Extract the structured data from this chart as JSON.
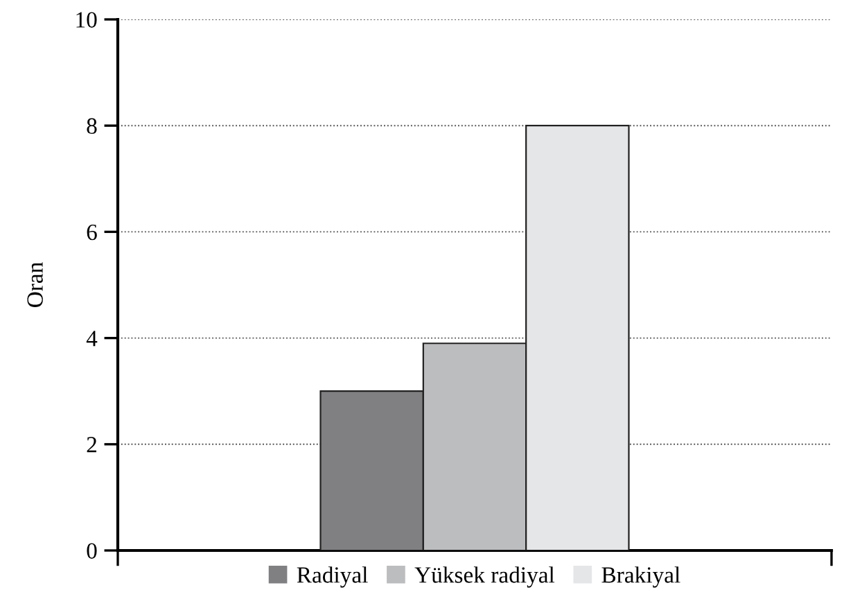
{
  "chart_data": {
    "type": "bar",
    "ylabel": "Oran",
    "categories": [
      null
    ],
    "series": [
      {
        "name": "Radiyal",
        "color": "#808083",
        "values": [
          3.0
        ]
      },
      {
        "name": "Yüksek radiyal",
        "color": "#bcbdbf",
        "values": [
          3.9
        ]
      },
      {
        "name": "Brakiyal",
        "color": "#e5e6e7",
        "values": [
          8.0
        ]
      }
    ],
    "ylim": [
      0,
      10
    ],
    "yticks": [
      0,
      2,
      4,
      6,
      8,
      10
    ],
    "grid": "y",
    "legend": "bottom"
  }
}
